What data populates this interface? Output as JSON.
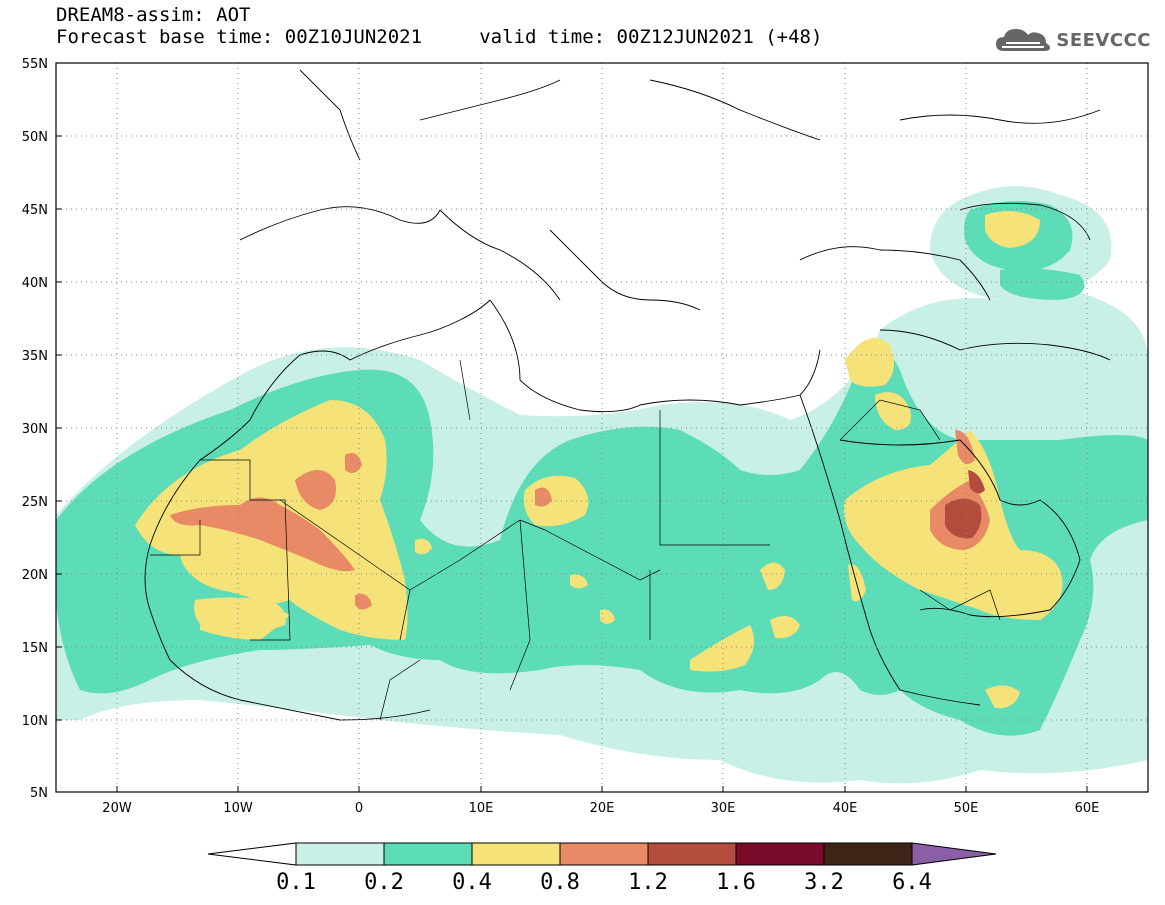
{
  "header": {
    "title_line1": "DREAM8-assim: AOT",
    "title_line2": "Forecast base time: 00Z10JUN2021     valid time: 00Z12JUN2021 (+48)"
  },
  "logo": {
    "text": "SEEVCCC",
    "icon": "cloud-icon"
  },
  "map": {
    "lat_ticks": [
      "55N",
      "50N",
      "45N",
      "40N",
      "35N",
      "30N",
      "25N",
      "20N",
      "15N",
      "10N",
      "5N"
    ],
    "lon_ticks": [
      "20W",
      "10W",
      "0",
      "10E",
      "20E",
      "30E",
      "40E",
      "50E",
      "60E"
    ],
    "lat_range": [
      5,
      55
    ],
    "lon_range": [
      -25,
      65
    ],
    "grid": "dotted"
  },
  "colorbar": {
    "labels": [
      "0.1",
      "0.2",
      "0.4",
      "0.8",
      "1.2",
      "1.6",
      "3.2",
      "6.4"
    ],
    "colors": [
      "#ffffff",
      "#c8f0e6",
      "#5ddcb8",
      "#f5e37a",
      "#e88a66",
      "#b44c3e",
      "#7a0a2a",
      "#3e2416",
      "#8a5fa8"
    ]
  }
}
